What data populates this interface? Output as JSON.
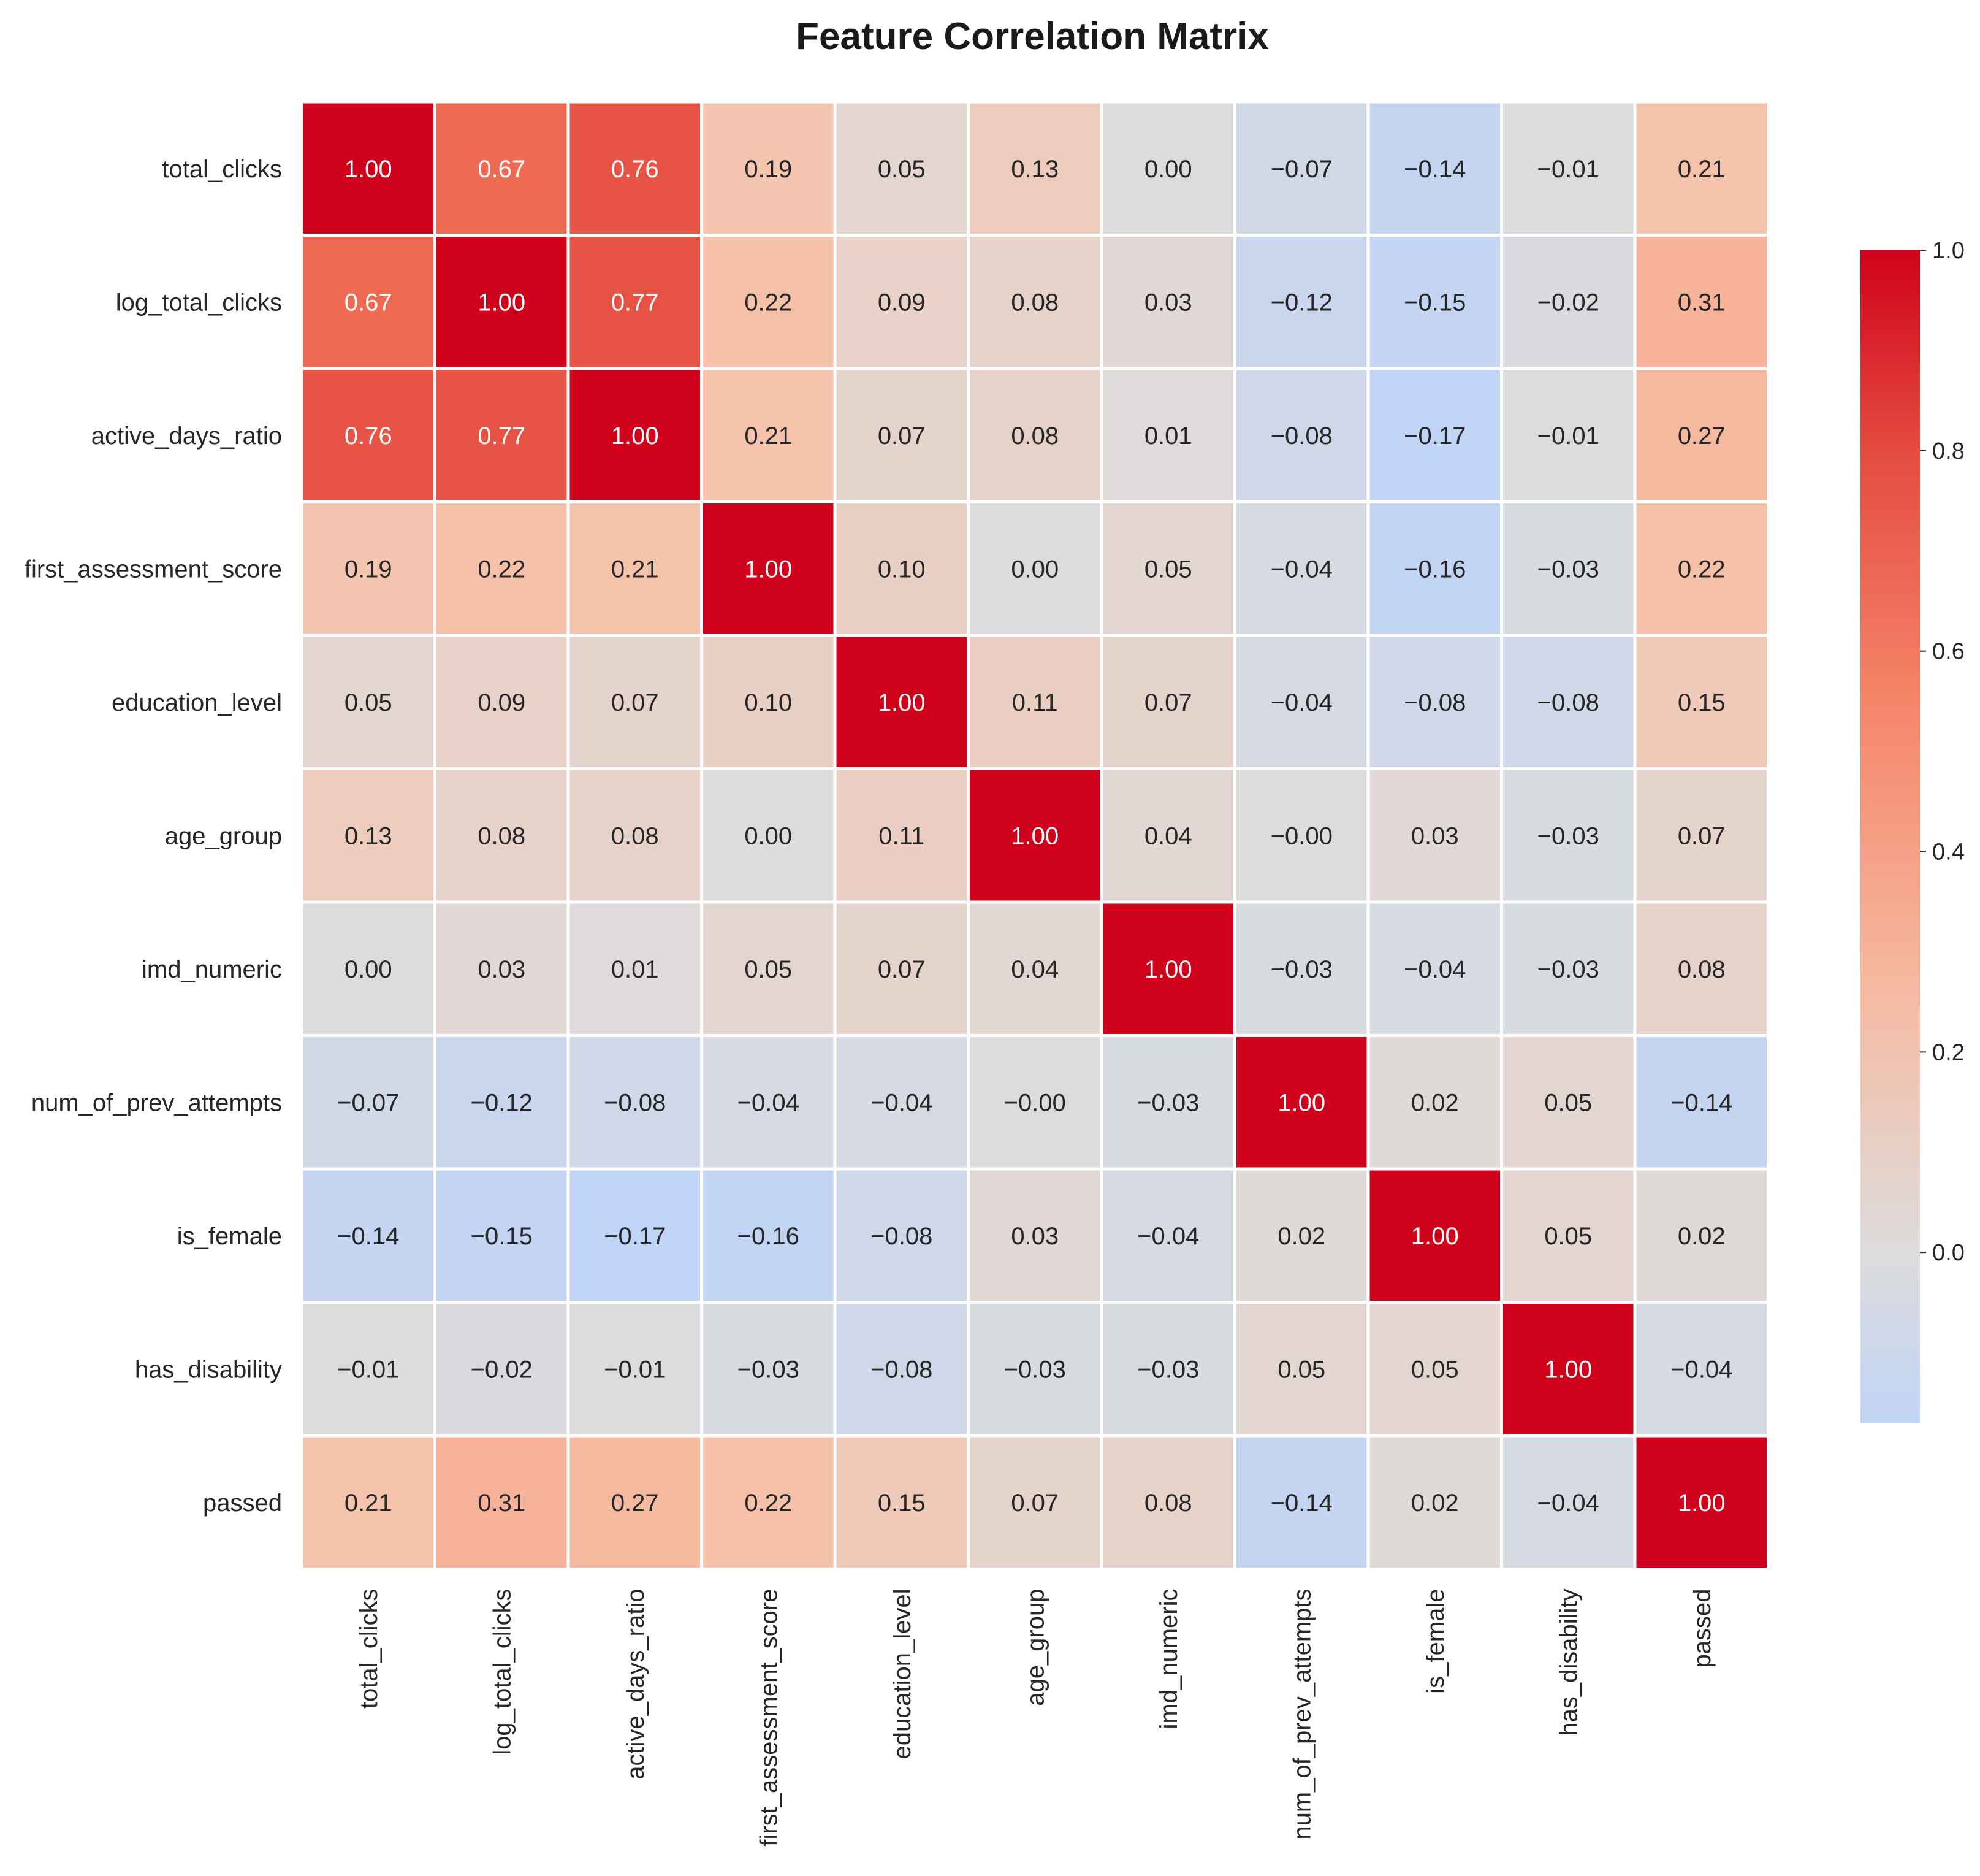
{
  "chart_data": {
    "type": "heatmap",
    "title": "Feature Correlation Matrix",
    "xlabel": "",
    "ylabel": "",
    "row_labels": [
      "total_clicks",
      "log_total_clicks",
      "active_days_ratio",
      "first_assessment_score",
      "education_level",
      "age_group",
      "imd_numeric",
      "num_of_prev_attempts",
      "is_female",
      "has_disability",
      "passed"
    ],
    "col_labels": [
      "total_clicks",
      "log_total_clicks",
      "active_days_ratio",
      "first_assessment_score",
      "education_level",
      "age_group",
      "imd_numeric",
      "num_of_prev_attempts",
      "is_female",
      "has_disability",
      "passed"
    ],
    "cell_labels": [
      [
        "1.00",
        "0.67",
        "0.76",
        "0.19",
        "0.05",
        "0.13",
        "0.00",
        "−0.07",
        "−0.14",
        "−0.01",
        "0.21"
      ],
      [
        "0.67",
        "1.00",
        "0.77",
        "0.22",
        "0.09",
        "0.08",
        "0.03",
        "−0.12",
        "−0.15",
        "−0.02",
        "0.31"
      ],
      [
        "0.76",
        "0.77",
        "1.00",
        "0.21",
        "0.07",
        "0.08",
        "0.01",
        "−0.08",
        "−0.17",
        "−0.01",
        "0.27"
      ],
      [
        "0.19",
        "0.22",
        "0.21",
        "1.00",
        "0.10",
        "0.00",
        "0.05",
        "−0.04",
        "−0.16",
        "−0.03",
        "0.22"
      ],
      [
        "0.05",
        "0.09",
        "0.07",
        "0.10",
        "1.00",
        "0.11",
        "0.07",
        "−0.04",
        "−0.08",
        "−0.08",
        "0.15"
      ],
      [
        "0.13",
        "0.08",
        "0.08",
        "0.00",
        "0.11",
        "1.00",
        "0.04",
        "−0.00",
        "0.03",
        "−0.03",
        "0.07"
      ],
      [
        "0.00",
        "0.03",
        "0.01",
        "0.05",
        "0.07",
        "0.04",
        "1.00",
        "−0.03",
        "−0.04",
        "−0.03",
        "0.08"
      ],
      [
        "−0.07",
        "−0.12",
        "−0.08",
        "−0.04",
        "−0.04",
        "−0.00",
        "−0.03",
        "1.00",
        "0.02",
        "0.05",
        "−0.14"
      ],
      [
        "−0.14",
        "−0.15",
        "−0.17",
        "−0.16",
        "−0.08",
        "0.03",
        "−0.04",
        "0.02",
        "1.00",
        "0.05",
        "0.02"
      ],
      [
        "−0.01",
        "−0.02",
        "−0.01",
        "−0.03",
        "−0.08",
        "−0.03",
        "−0.03",
        "0.05",
        "0.05",
        "1.00",
        "−0.04"
      ],
      [
        "0.21",
        "0.31",
        "0.27",
        "0.22",
        "0.15",
        "0.07",
        "0.08",
        "−0.14",
        "0.02",
        "−0.04",
        "1.00"
      ]
    ],
    "colormap": {
      "name": "coolwarm",
      "vmin": -0.17,
      "vmax": 1.0,
      "center": 0.0,
      "low_color": "#c0d4f5",
      "center_color": "#dddcdc",
      "high_color": "#d0021b"
    },
    "colorbar": {
      "ticks": [
        0.0,
        0.2,
        0.4,
        0.6,
        0.8,
        1.0
      ],
      "tick_labels": [
        "0.0",
        "0.2",
        "0.4",
        "0.6",
        "0.8",
        "1.0"
      ]
    },
    "grid_line_color": "#ffffff",
    "text_colors": {
      "dark": "#262626",
      "light": "#ffffff"
    },
    "legend": "right"
  }
}
